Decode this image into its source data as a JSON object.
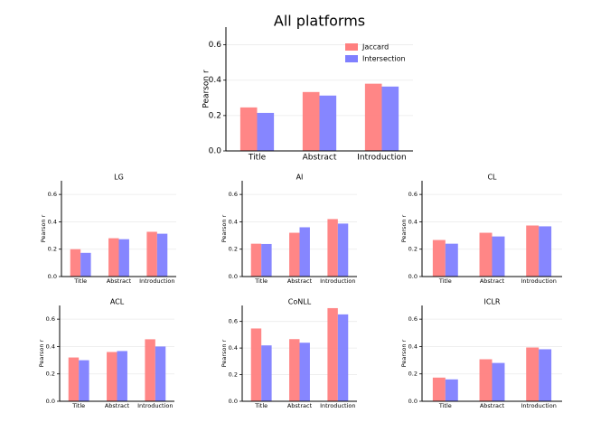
{
  "chart_data": [
    {
      "type": "bar",
      "title": "All platforms",
      "ylabel": "Pearson r",
      "categories": [
        "Title",
        "Abstract",
        "Introduction"
      ],
      "series": [
        {
          "name": "Jaccard",
          "color": "#ff7f7f",
          "values": [
            0.246,
            0.333,
            0.38
          ]
        },
        {
          "name": "Intersection",
          "color": "#7f7fff",
          "values": [
            0.215,
            0.313,
            0.364
          ]
        }
      ],
      "ylim": [
        0,
        0.7
      ],
      "yticks": [
        {
          "value": 0,
          "label": "0.0"
        },
        0.2,
        0.4,
        0.6
      ],
      "grid": true,
      "legend": "upper right"
    },
    {
      "type": "bar",
      "title": "LG",
      "ylabel": "Pearson r",
      "categories": [
        "Title",
        "Abstract",
        "Introduction"
      ],
      "series": [
        {
          "color": "#ff7f7f",
          "values": [
            0.2,
            0.28,
            0.327
          ]
        },
        {
          "color": "#7f7fff",
          "values": [
            0.173,
            0.273,
            0.313
          ]
        }
      ],
      "ylim": [
        0,
        0.7
      ],
      "yticks": [
        {
          "value": 0,
          "label": "0.0"
        },
        0.2,
        0.4,
        0.6
      ],
      "grid": true
    },
    {
      "type": "bar",
      "title": "AI",
      "ylabel": "Pearson r",
      "categories": [
        "Title",
        "Abstract",
        "Introduction"
      ],
      "series": [
        {
          "color": "#ff7f7f",
          "values": [
            0.24,
            0.32,
            0.42
          ]
        },
        {
          "color": "#7f7fff",
          "values": [
            0.238,
            0.36,
            0.387
          ]
        }
      ],
      "ylim": [
        0,
        0.7
      ],
      "yticks": [
        {
          "value": 0,
          "label": "0.0"
        },
        0.2,
        0.4,
        0.6
      ],
      "grid": true
    },
    {
      "type": "bar",
      "title": "CL",
      "ylabel": "Pearson r",
      "categories": [
        "Title",
        "Abstract",
        "Introduction"
      ],
      "series": [
        {
          "color": "#ff7f7f",
          "values": [
            0.267,
            0.32,
            0.373
          ]
        },
        {
          "color": "#7f7fff",
          "values": [
            0.24,
            0.293,
            0.367
          ]
        }
      ],
      "ylim": [
        0,
        0.7
      ],
      "yticks": [
        {
          "value": 0,
          "label": "0.0"
        },
        0.2,
        0.4,
        0.6
      ],
      "grid": true
    },
    {
      "type": "bar",
      "title": "ACL",
      "ylabel": "Pearson r",
      "categories": [
        "Title",
        "Abstract",
        "Introduction"
      ],
      "series": [
        {
          "color": "#ff7f7f",
          "values": [
            0.32,
            0.36,
            0.453
          ]
        },
        {
          "color": "#7f7fff",
          "values": [
            0.3,
            0.367,
            0.4
          ]
        }
      ],
      "ylim": [
        0,
        0.7
      ],
      "yticks": [
        {
          "value": 0,
          "label": "0.0"
        },
        0.2,
        0.4,
        0.6
      ],
      "grid": true
    },
    {
      "type": "bar",
      "title": "CoNLL",
      "ylabel": "Pearson r",
      "categories": [
        "Title",
        "Abstract",
        "Introduction"
      ],
      "series": [
        {
          "color": "#ff7f7f",
          "values": [
            0.547,
            0.467,
            0.7
          ]
        },
        {
          "color": "#7f7fff",
          "values": [
            0.42,
            0.44,
            0.653
          ]
        }
      ],
      "ylim": [
        0,
        0.72
      ],
      "yticks": [
        {
          "value": 0,
          "label": "0.0"
        },
        0.2,
        0.4,
        0.6
      ],
      "grid": true
    },
    {
      "type": "bar",
      "title": "ICLR",
      "ylabel": "Pearson r",
      "categories": [
        "Title",
        "Abstract",
        "Introduction"
      ],
      "series": [
        {
          "color": "#ff7f7f",
          "values": [
            0.173,
            0.307,
            0.393
          ]
        },
        {
          "color": "#7f7fff",
          "values": [
            0.16,
            0.28,
            0.38
          ]
        }
      ],
      "ylim": [
        0,
        0.7
      ],
      "yticks": [
        {
          "value": 0,
          "label": "0.0"
        },
        0.2,
        0.4,
        0.6
      ],
      "grid": true
    }
  ]
}
